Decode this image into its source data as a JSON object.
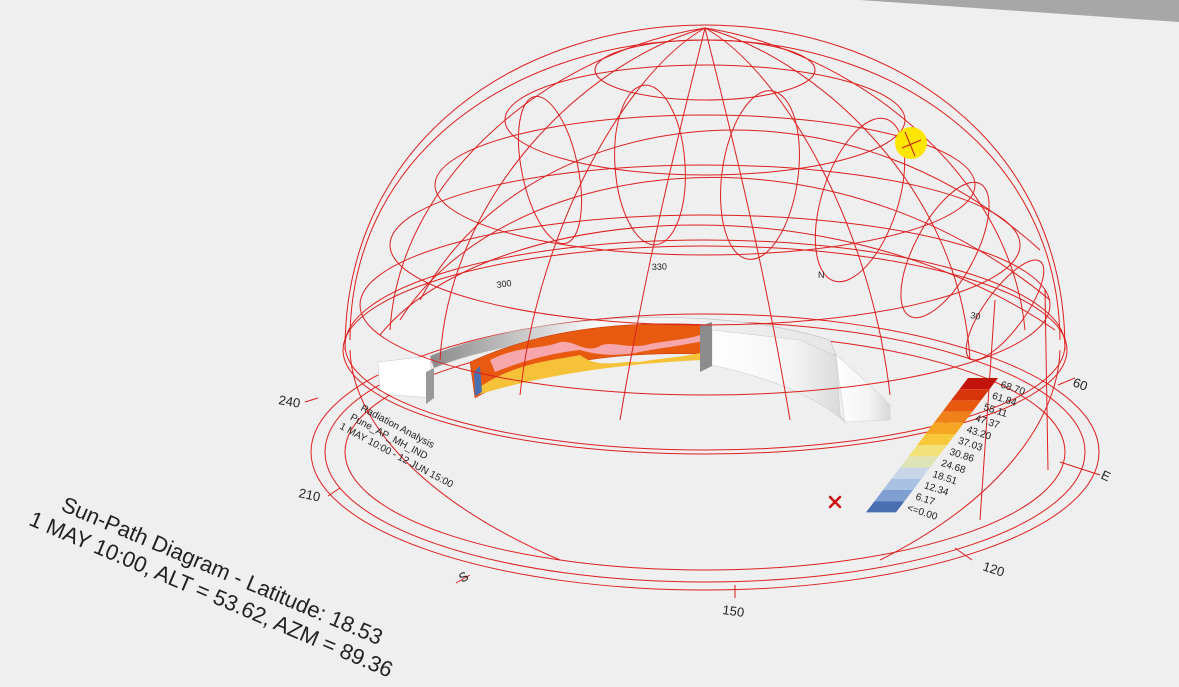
{
  "caption": {
    "line1": "Sun-Path Diagram - Latitude: 18.53",
    "line2": "1 MAY 10:00, ALT = 53.62, AZM = 89.36"
  },
  "radiation_note": {
    "line1": "Radiation Analysis",
    "line2": "Pune_AP_MH_IND",
    "line3": "1 MAY 10:00 - 12 JUN 15:00"
  },
  "compass": {
    "s": "S",
    "e": "E",
    "a150": "150",
    "a120": "120",
    "a210": "210",
    "a240": "240",
    "a60": "60"
  },
  "dome_labels": {
    "d300": "300",
    "d330": "330",
    "n": "N",
    "d30": "30"
  },
  "legend": {
    "values": [
      "68.70",
      "61.84",
      "55.11",
      "47.37",
      "43.20",
      "37.03",
      "30.86",
      "24.68",
      "18.51",
      "12.34",
      "6.17",
      "<=0.00"
    ],
    "colors": [
      "#c1130a",
      "#d8350c",
      "#e8590f",
      "#f08019",
      "#f5a623",
      "#f7c93a",
      "#f3e27a",
      "#dfe3b6",
      "#c9d6e8",
      "#a9c1e3",
      "#7f9fd2",
      "#4a6fb1"
    ]
  },
  "colors": {
    "grid": "#dd1f1f",
    "sun": "#ffe600",
    "marker": "#cc1111"
  }
}
